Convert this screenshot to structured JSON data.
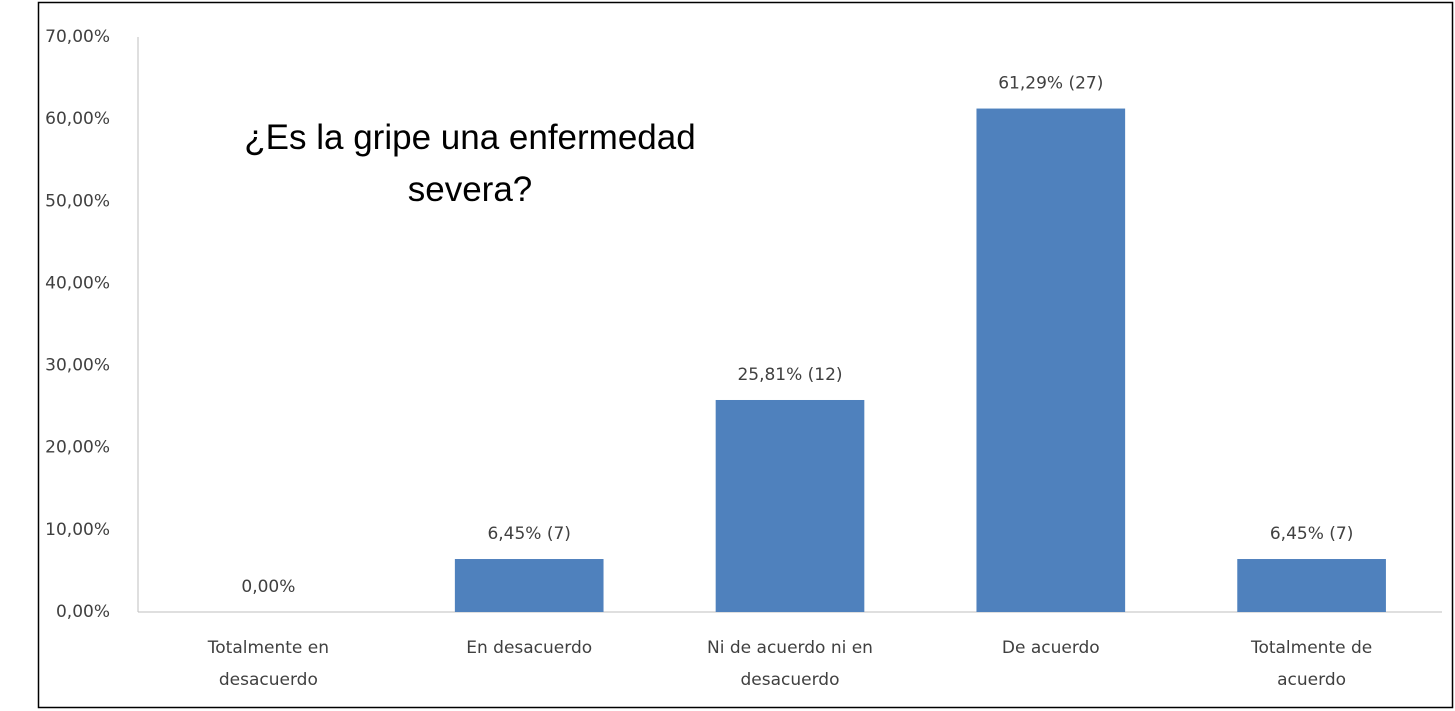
{
  "chart_data": {
    "type": "bar",
    "title": "¿Es la gripe una enfermedad severa?",
    "categories": [
      "Totalmente en desacuerdo",
      "En desacuerdo",
      "Ni de acuerdo ni en desacuerdo",
      "De acuerdo",
      "Totalmente de acuerdo"
    ],
    "values": [
      0,
      6.45,
      25.81,
      61.29,
      6.45
    ],
    "value_labels": [
      "0,00%",
      "6,45% (7)",
      "25,81% (12)",
      "61,29% (27)",
      "6,45% (7)"
    ],
    "color": "#4f81bd",
    "ylim": [
      0,
      70
    ],
    "yticks": [
      {
        "value": 0,
        "label": "0,00%"
      },
      {
        "value": 10,
        "label": "10,00%"
      },
      {
        "value": 20,
        "label": "20,00%"
      },
      {
        "value": 30,
        "label": "30,00%"
      },
      {
        "value": 40,
        "label": "40,00%"
      },
      {
        "value": 50,
        "label": "50,00%"
      },
      {
        "value": 60,
        "label": "60,00%"
      },
      {
        "value": 70,
        "label": "70,00%"
      }
    ],
    "grid": false
  }
}
